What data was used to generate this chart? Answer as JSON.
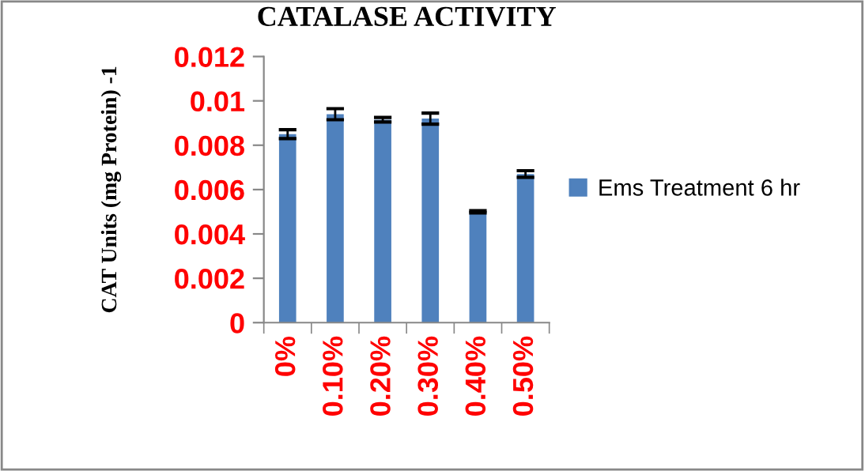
{
  "chart_data": {
    "type": "bar",
    "title": "CATALASE ACTIVITY",
    "ylabel": "CAT Units (mg Protein) -1",
    "categories": [
      "0%",
      "0.10%",
      "0.20%",
      "0.30%",
      "0.40%",
      "0.50%"
    ],
    "series": [
      {
        "name": "Ems Treatment 6 hr",
        "color": "#4f81bd",
        "values": [
          0.0085,
          0.0094,
          0.00915,
          0.0092,
          0.005,
          0.0067
        ],
        "errors": [
          0.0002,
          0.00025,
          0.0001,
          0.00025,
          5e-05,
          0.00015
        ]
      }
    ],
    "ylim": [
      0,
      0.012
    ],
    "yticks": [
      0,
      0.002,
      0.004,
      0.006,
      0.008,
      0.01,
      0.012
    ],
    "grid": false,
    "legend": "right"
  }
}
